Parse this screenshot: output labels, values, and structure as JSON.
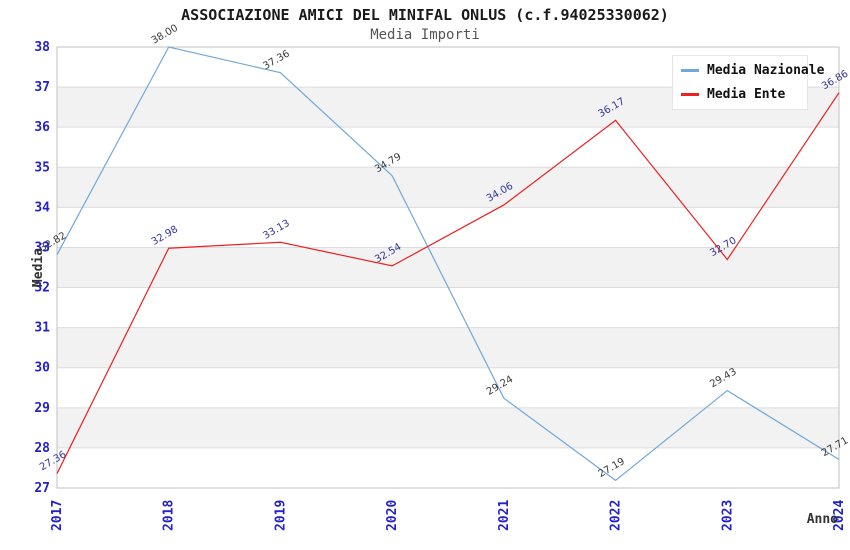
{
  "chart_data": {
    "type": "line",
    "title": "ASSOCIAZIONE AMICI DEL MINIFAL ONLUS (c.f.94025330062)",
    "subtitle": "Media Importi",
    "xlabel": "Anno",
    "ylabel": "Media",
    "x": [
      "2017",
      "2018",
      "2019",
      "2020",
      "2021",
      "2022",
      "2023",
      "2024"
    ],
    "series": [
      {
        "name": "Media Nazionale",
        "color": "#6FA8DC",
        "label_color": "#3A3A3A",
        "values": [
          32.82,
          38.0,
          37.36,
          34.79,
          29.24,
          27.19,
          29.43,
          27.71
        ]
      },
      {
        "name": "Media Ente",
        "color": "#EE2020",
        "label_color": "#333399",
        "values": [
          27.36,
          32.98,
          33.13,
          32.54,
          34.06,
          36.17,
          32.7,
          36.86
        ]
      }
    ],
    "ylim": [
      27,
      38
    ],
    "yticks": [
      27,
      28,
      29,
      30,
      31,
      32,
      33,
      34,
      35,
      36,
      37,
      38
    ],
    "grid": true,
    "legend_position": "top-right",
    "style": {
      "tick_color": "#2222CC",
      "band_color": "#F2F2F2",
      "grid_color": "#DCDCDC",
      "border_color": "#C0C0C0",
      "axis_label_color": "#333333",
      "legend_bg": "#FFFFFF",
      "legend_border": "#E6E6E6"
    }
  }
}
